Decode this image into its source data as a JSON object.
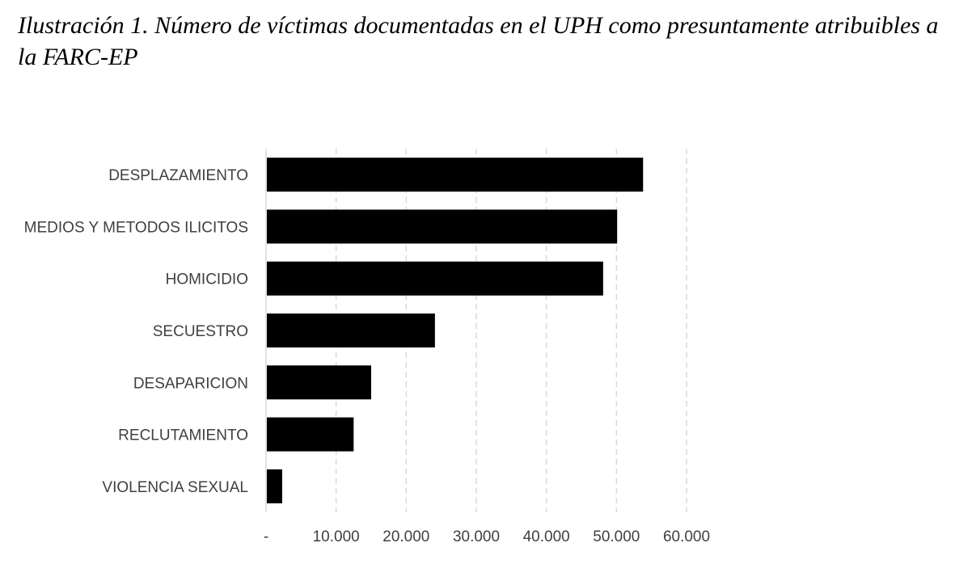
{
  "figure": {
    "caption": "Ilustración 1. Número de víctimas documentadas en el UPH como presuntamente atribuibles a la FARC-EP"
  },
  "chart_data": {
    "type": "bar",
    "orientation": "horizontal",
    "categories": [
      "DESPLAZAMIENTO",
      "MEDIOS Y METODOS ILICITOS",
      "HOMICIDIO",
      "SECUESTRO",
      "DESAPARICION",
      "RECLUTAMIENTO",
      "VIOLENCIA SEXUAL"
    ],
    "values": [
      53800,
      50100,
      48100,
      24100,
      15000,
      12500,
      2300
    ],
    "xlim": [
      0,
      60000
    ],
    "xticks": [
      0,
      10000,
      20000,
      30000,
      40000,
      50000,
      60000
    ],
    "xtick_labels": [
      "-",
      "10.000",
      "20.000",
      "30.000",
      "40.000",
      "50.000",
      "60.000"
    ],
    "grid": "vertical dashed",
    "bar_color": "#000000",
    "title": "",
    "xlabel": "",
    "ylabel": ""
  }
}
